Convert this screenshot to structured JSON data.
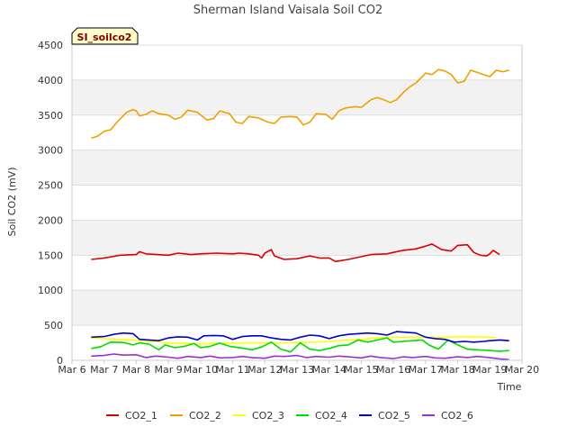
{
  "chart_data": {
    "type": "line",
    "title": "Sherman Island Vaisala Soil CO2",
    "xlabel": "Time",
    "ylabel": "Soil CO2 (mV)",
    "badge": "SI_soilco2",
    "ylim": [
      0,
      4500
    ],
    "xlim_days": [
      6,
      20
    ],
    "x_tick_labels": [
      "Mar 6",
      "Mar 7",
      "Mar 8",
      "Mar 9",
      "Mar 10",
      "Mar 11",
      "Mar 12",
      "Mar 13",
      "Mar 14",
      "Mar 15",
      "Mar 16",
      "Mar 17",
      "Mar 18",
      "Mar 19",
      "Mar 20"
    ],
    "y_ticks": [
      0,
      500,
      1000,
      1500,
      2000,
      2500,
      3000,
      3500,
      4000,
      4500
    ],
    "grid": "horizontal bands",
    "legend_position": "bottom",
    "series": [
      {
        "name": "CO2_1",
        "color": "#dd0000",
        "points": [
          [
            "Mar 6.6",
            1440
          ],
          [
            "Mar 7",
            1460
          ],
          [
            "Mar 7.5",
            1500
          ],
          [
            "Mar 8",
            1510
          ],
          [
            "Mar 8.1",
            1550
          ],
          [
            "Mar 8.3",
            1520
          ],
          [
            "Mar 9",
            1500
          ],
          [
            "Mar 9.3",
            1530
          ],
          [
            "Mar 9.7",
            1510
          ],
          [
            "Mar 10",
            1520
          ],
          [
            "Mar 10.5",
            1530
          ],
          [
            "Mar 11",
            1520
          ],
          [
            "Mar 11.2",
            1530
          ],
          [
            "Mar 11.5",
            1520
          ],
          [
            "Mar 11.8",
            1500
          ],
          [
            "Mar 11.9",
            1460
          ],
          [
            "Mar 12",
            1530
          ],
          [
            "Mar 12.2",
            1580
          ],
          [
            "Mar 12.3",
            1490
          ],
          [
            "Mar 12.6",
            1440
          ],
          [
            "Mar 13",
            1450
          ],
          [
            "Mar 13.4",
            1490
          ],
          [
            "Mar 13.7",
            1460
          ],
          [
            "Mar 14",
            1460
          ],
          [
            "Mar 14.2",
            1410
          ],
          [
            "Mar 14.6",
            1440
          ],
          [
            "Mar 15",
            1480
          ],
          [
            "Mar 15.3",
            1510
          ],
          [
            "Mar 15.8",
            1520
          ],
          [
            "Mar 16",
            1540
          ],
          [
            "Mar 16.3",
            1570
          ],
          [
            "Mar 16.7",
            1590
          ],
          [
            "Mar 17",
            1630
          ],
          [
            "Mar 17.2",
            1660
          ],
          [
            "Mar 17.5",
            1580
          ],
          [
            "Mar 17.8",
            1560
          ],
          [
            "Mar 18",
            1640
          ],
          [
            "Mar 18.3",
            1650
          ],
          [
            "Mar 18.5",
            1540
          ],
          [
            "Mar 18.7",
            1500
          ],
          [
            "Mar 18.9",
            1490
          ],
          [
            "Mar 19",
            1520
          ],
          [
            "Mar 19.1",
            1570
          ],
          [
            "Mar 19.2",
            1540
          ],
          [
            "Mar 19.3",
            1510
          ]
        ]
      },
      {
        "name": "CO2_2",
        "color": "#f0a000",
        "points": [
          [
            "Mar 6.6",
            3170
          ],
          [
            "Mar 6.8",
            3200
          ],
          [
            "Mar 7",
            3270
          ],
          [
            "Mar 7.2",
            3290
          ],
          [
            "Mar 7.4",
            3400
          ],
          [
            "Mar 7.7",
            3540
          ],
          [
            "Mar 7.9",
            3580
          ],
          [
            "Mar 8",
            3560
          ],
          [
            "Mar 8.1",
            3490
          ],
          [
            "Mar 8.3",
            3510
          ],
          [
            "Mar 8.5",
            3560
          ],
          [
            "Mar 8.7",
            3520
          ],
          [
            "Mar 9",
            3500
          ],
          [
            "Mar 9.2",
            3440
          ],
          [
            "Mar 9.4",
            3470
          ],
          [
            "Mar 9.6",
            3570
          ],
          [
            "Mar 9.9",
            3540
          ],
          [
            "Mar 10.2",
            3430
          ],
          [
            "Mar 10.4",
            3450
          ],
          [
            "Mar 10.6",
            3560
          ],
          [
            "Mar 10.9",
            3520
          ],
          [
            "Mar 11.1",
            3400
          ],
          [
            "Mar 11.3",
            3380
          ],
          [
            "Mar 11.5",
            3480
          ],
          [
            "Mar 11.8",
            3460
          ],
          [
            "Mar 12.1",
            3400
          ],
          [
            "Mar 12.3",
            3380
          ],
          [
            "Mar 12.5",
            3470
          ],
          [
            "Mar 12.8",
            3480
          ],
          [
            "Mar 13",
            3470
          ],
          [
            "Mar 13.2",
            3360
          ],
          [
            "Mar 13.4",
            3400
          ],
          [
            "Mar 13.6",
            3520
          ],
          [
            "Mar 13.9",
            3510
          ],
          [
            "Mar 14.1",
            3440
          ],
          [
            "Mar 14.3",
            3560
          ],
          [
            "Mar 14.5",
            3600
          ],
          [
            "Mar 14.8",
            3620
          ],
          [
            "Mar 15",
            3610
          ],
          [
            "Mar 15.3",
            3720
          ],
          [
            "Mar 15.5",
            3750
          ],
          [
            "Mar 15.7",
            3720
          ],
          [
            "Mar 15.9",
            3680
          ],
          [
            "Mar 16.1",
            3720
          ],
          [
            "Mar 16.3",
            3820
          ],
          [
            "Mar 16.5",
            3900
          ],
          [
            "Mar 16.7",
            3960
          ],
          [
            "Mar 16.9",
            4050
          ],
          [
            "Mar 17",
            4100
          ],
          [
            "Mar 17.2",
            4080
          ],
          [
            "Mar 17.4",
            4150
          ],
          [
            "Mar 17.6",
            4130
          ],
          [
            "Mar 17.8",
            4080
          ],
          [
            "Mar 18",
            3960
          ],
          [
            "Mar 18.2",
            3980
          ],
          [
            "Mar 18.4",
            4140
          ],
          [
            "Mar 18.6",
            4110
          ],
          [
            "Mar 18.8",
            4080
          ],
          [
            "Mar 19",
            4050
          ],
          [
            "Mar 19.2",
            4140
          ],
          [
            "Mar 19.4",
            4120
          ],
          [
            "Mar 19.6",
            4140
          ]
        ]
      },
      {
        "name": "CO2_3",
        "color": "#ffff00",
        "points": [
          [
            "Mar 6.6",
            320
          ],
          [
            "Mar 7",
            310
          ],
          [
            "Mar 7.5",
            300
          ],
          [
            "Mar 8",
            285
          ],
          [
            "Mar 8.5",
            270
          ],
          [
            "Mar 9",
            250
          ],
          [
            "Mar 9.5",
            240
          ],
          [
            "Mar 10",
            235
          ],
          [
            "Mar 10.5",
            240
          ],
          [
            "Mar 11",
            245
          ],
          [
            "Mar 11.5",
            250
          ],
          [
            "Mar 12",
            250
          ],
          [
            "Mar 12.5",
            250
          ],
          [
            "Mar 13",
            255
          ],
          [
            "Mar 13.5",
            260
          ],
          [
            "Mar 14",
            270
          ],
          [
            "Mar 14.5",
            285
          ],
          [
            "Mar 15",
            300
          ],
          [
            "Mar 15.5",
            320
          ],
          [
            "Mar 16",
            330
          ],
          [
            "Mar 16.5",
            330
          ],
          [
            "Mar 17",
            330
          ],
          [
            "Mar 17.5",
            330
          ],
          [
            "Mar 18",
            335
          ],
          [
            "Mar 18.5",
            335
          ],
          [
            "Mar 19",
            330
          ],
          [
            "Mar 19.2",
            320
          ]
        ]
      },
      {
        "name": "CO2_4",
        "color": "#00dd00",
        "points": [
          [
            "Mar 6.6",
            170
          ],
          [
            "Mar 6.9",
            195
          ],
          [
            "Mar 7.2",
            260
          ],
          [
            "Mar 7.6",
            255
          ],
          [
            "Mar 7.9",
            220
          ],
          [
            "Mar 8.1",
            250
          ],
          [
            "Mar 8.4",
            230
          ],
          [
            "Mar 8.7",
            150
          ],
          [
            "Mar 8.9",
            220
          ],
          [
            "Mar 9.2",
            180
          ],
          [
            "Mar 9.5",
            200
          ],
          [
            "Mar 9.8",
            240
          ],
          [
            "Mar 10",
            180
          ],
          [
            "Mar 10.3",
            200
          ],
          [
            "Mar 10.6",
            245
          ],
          [
            "Mar 10.9",
            200
          ],
          [
            "Mar 11.3",
            175
          ],
          [
            "Mar 11.6",
            150
          ],
          [
            "Mar 11.9",
            190
          ],
          [
            "Mar 12.2",
            260
          ],
          [
            "Mar 12.5",
            160
          ],
          [
            "Mar 12.8",
            120
          ],
          [
            "Mar 13.1",
            250
          ],
          [
            "Mar 13.4",
            160
          ],
          [
            "Mar 13.7",
            140
          ],
          [
            "Mar 14",
            170
          ],
          [
            "Mar 14.3",
            210
          ],
          [
            "Mar 14.6",
            220
          ],
          [
            "Mar 14.9",
            290
          ],
          [
            "Mar 15.2",
            260
          ],
          [
            "Mar 15.5",
            290
          ],
          [
            "Mar 15.8",
            320
          ],
          [
            "Mar 16",
            260
          ],
          [
            "Mar 16.3",
            270
          ],
          [
            "Mar 16.6",
            280
          ],
          [
            "Mar 16.9",
            290
          ],
          [
            "Mar 17.1",
            220
          ],
          [
            "Mar 17.4",
            160
          ],
          [
            "Mar 17.7",
            290
          ],
          [
            "Mar 18",
            220
          ],
          [
            "Mar 18.3",
            160
          ],
          [
            "Mar 18.6",
            150
          ],
          [
            "Mar 19",
            140
          ],
          [
            "Mar 19.3",
            130
          ],
          [
            "Mar 19.6",
            140
          ]
        ]
      },
      {
        "name": "CO2_5",
        "color": "#0000cc",
        "points": [
          [
            "Mar 6.6",
            330
          ],
          [
            "Mar 7",
            340
          ],
          [
            "Mar 7.3",
            370
          ],
          [
            "Mar 7.6",
            390
          ],
          [
            "Mar 7.9",
            380
          ],
          [
            "Mar 8.1",
            300
          ],
          [
            "Mar 8.4",
            290
          ],
          [
            "Mar 8.7",
            280
          ],
          [
            "Mar 9",
            320
          ],
          [
            "Mar 9.3",
            335
          ],
          [
            "Mar 9.6",
            330
          ],
          [
            "Mar 9.9",
            290
          ],
          [
            "Mar 10.1",
            350
          ],
          [
            "Mar 10.4",
            355
          ],
          [
            "Mar 10.7",
            350
          ],
          [
            "Mar 11",
            300
          ],
          [
            "Mar 11.3",
            340
          ],
          [
            "Mar 11.6",
            350
          ],
          [
            "Mar 11.9",
            350
          ],
          [
            "Mar 12.2",
            320
          ],
          [
            "Mar 12.5",
            300
          ],
          [
            "Mar 12.8",
            290
          ],
          [
            "Mar 13.1",
            330
          ],
          [
            "Mar 13.4",
            360
          ],
          [
            "Mar 13.7",
            350
          ],
          [
            "Mar 14",
            310
          ],
          [
            "Mar 14.3",
            350
          ],
          [
            "Mar 14.6",
            370
          ],
          [
            "Mar 14.9",
            380
          ],
          [
            "Mar 15.2",
            390
          ],
          [
            "Mar 15.5",
            380
          ],
          [
            "Mar 15.8",
            360
          ],
          [
            "Mar 16.1",
            410
          ],
          [
            "Mar 16.4",
            400
          ],
          [
            "Mar 16.7",
            390
          ],
          [
            "Mar 17",
            330
          ],
          [
            "Mar 17.3",
            310
          ],
          [
            "Mar 17.6",
            300
          ],
          [
            "Mar 17.9",
            260
          ],
          [
            "Mar 18.2",
            270
          ],
          [
            "Mar 18.5",
            260
          ],
          [
            "Mar 18.8",
            270
          ],
          [
            "Mar 19",
            280
          ],
          [
            "Mar 19.3",
            290
          ],
          [
            "Mar 19.6",
            280
          ]
        ]
      },
      {
        "name": "CO2_6",
        "color": "#9933cc",
        "points": [
          [
            "Mar 6.6",
            60
          ],
          [
            "Mar 7",
            70
          ],
          [
            "Mar 7.3",
            90
          ],
          [
            "Mar 7.6",
            75
          ],
          [
            "Mar 8",
            80
          ],
          [
            "Mar 8.3",
            40
          ],
          [
            "Mar 8.6",
            60
          ],
          [
            "Mar 9",
            45
          ],
          [
            "Mar 9.3",
            30
          ],
          [
            "Mar 9.6",
            55
          ],
          [
            "Mar 10",
            40
          ],
          [
            "Mar 10.3",
            60
          ],
          [
            "Mar 10.6",
            35
          ],
          [
            "Mar 11",
            40
          ],
          [
            "Mar 11.3",
            55
          ],
          [
            "Mar 11.6",
            40
          ],
          [
            "Mar 12",
            30
          ],
          [
            "Mar 12.3",
            60
          ],
          [
            "Mar 12.6",
            55
          ],
          [
            "Mar 13",
            70
          ],
          [
            "Mar 13.3",
            40
          ],
          [
            "Mar 13.6",
            55
          ],
          [
            "Mar 14",
            45
          ],
          [
            "Mar 14.3",
            60
          ],
          [
            "Mar 14.6",
            50
          ],
          [
            "Mar 15",
            35
          ],
          [
            "Mar 15.3",
            60
          ],
          [
            "Mar 15.6",
            40
          ],
          [
            "Mar 16",
            25
          ],
          [
            "Mar 16.3",
            50
          ],
          [
            "Mar 16.6",
            40
          ],
          [
            "Mar 17",
            55
          ],
          [
            "Mar 17.3",
            35
          ],
          [
            "Mar 17.6",
            30
          ],
          [
            "Mar 18",
            50
          ],
          [
            "Mar 18.3",
            40
          ],
          [
            "Mar 18.6",
            55
          ],
          [
            "Mar 19",
            40
          ],
          [
            "Mar 19.3",
            20
          ],
          [
            "Mar 19.6",
            10
          ]
        ]
      }
    ]
  }
}
